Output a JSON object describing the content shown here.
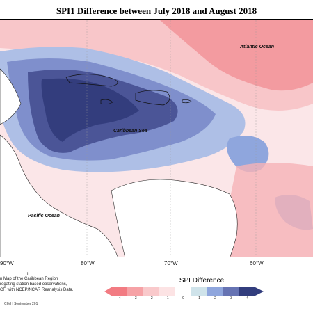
{
  "map": {
    "title": "SPI1 Difference between July 2018 and August 2018",
    "labels": {
      "atlantic": "Atlantic Ocean",
      "caribbean": "Caribbean Sea",
      "pacific": "Pacific Ocean"
    },
    "longitude_ticks": [
      "90°W",
      "80°W",
      "70°W",
      "60°W"
    ],
    "footnote_mark": "1",
    "footnote_lines": [
      "n Map of the Caribbean Region",
      "regating station based observations,",
      "CF, with NCEP/NCAR Reanalysis Data."
    ],
    "copyright": "CIMH September 201"
  },
  "legend": {
    "title": "SPI Difference",
    "ticks": [
      "-4",
      "-3",
      "-2",
      "-1",
      "0",
      "1",
      "2",
      "3",
      "4"
    ],
    "colors": [
      "#f27b82",
      "#f6a2a6",
      "#f9c9cb",
      "#fce3e4",
      "#ffffff",
      "#cfe3ea",
      "#8fa6dd",
      "#6673b3",
      "#323d7d"
    ]
  }
}
